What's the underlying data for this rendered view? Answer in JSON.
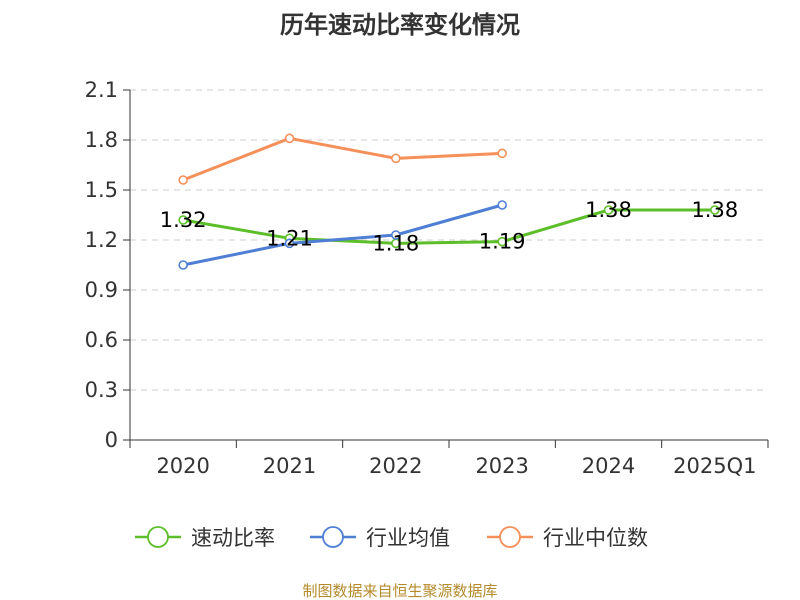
{
  "chart_data": {
    "type": "line",
    "title": "历年速动比率变化情况",
    "categories": [
      "2020",
      "2021",
      "2022",
      "2023",
      "2024",
      "2025Q1"
    ],
    "ylim": [
      0,
      2.1
    ],
    "yticks": [
      "0",
      "0.3",
      "0.6",
      "0.9",
      "1.2",
      "1.5",
      "1.8",
      "2.1"
    ],
    "grid": true,
    "legend_position": "bottom",
    "series": [
      {
        "name": "速动比率",
        "color": "#5cbf2a",
        "values": [
          1.32,
          1.21,
          1.18,
          1.19,
          1.38,
          1.38
        ],
        "labels": [
          "1.32",
          "1.21",
          "1.18",
          "1.19",
          "1.38",
          "1.38"
        ],
        "show_labels": true
      },
      {
        "name": "行业均值",
        "color": "#4f7fd4",
        "values": [
          1.05,
          1.18,
          1.23,
          1.41,
          null,
          null
        ],
        "show_labels": false
      },
      {
        "name": "行业中位数",
        "color": "#f6905a",
        "values": [
          1.56,
          1.81,
          1.69,
          1.72,
          null,
          null
        ],
        "show_labels": false
      }
    ],
    "source_note": "制图数据来自恒生聚源数据库"
  }
}
